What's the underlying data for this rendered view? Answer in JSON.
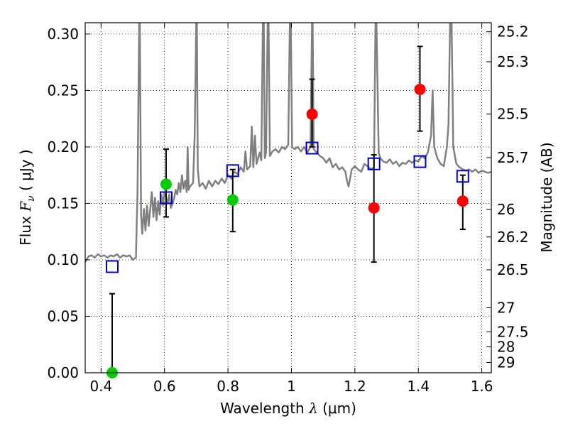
{
  "chart_data": {
    "type": "scatter",
    "xlabel": "Wavelength",
    "xlabel_symbol": "λ",
    "xlabel_unit": "(μm)",
    "ylabel": "Flux",
    "ylabel_symbol": "F",
    "ylabel_subscript": "ν",
    "ylabel_unit": "( μJy )",
    "y2label": "Magnitude (AB)",
    "xlim": [
      0.35,
      1.63
    ],
    "ylim": [
      0.0,
      0.31
    ],
    "grid": true,
    "x_ticks": [
      {
        "value": 0.4,
        "label": "0.4"
      },
      {
        "value": 0.6,
        "label": "0.6"
      },
      {
        "value": 0.8,
        "label": "0.8"
      },
      {
        "value": 1.0,
        "label": "1"
      },
      {
        "value": 1.2,
        "label": "1.2"
      },
      {
        "value": 1.4,
        "label": "1.4"
      },
      {
        "value": 1.6,
        "label": "1.6"
      }
    ],
    "y_ticks": [
      {
        "value": 0.0,
        "label": "0.00"
      },
      {
        "value": 0.05,
        "label": "0.05"
      },
      {
        "value": 0.1,
        "label": "0.10"
      },
      {
        "value": 0.15,
        "label": "0.15"
      },
      {
        "value": 0.2,
        "label": "0.20"
      },
      {
        "value": 0.25,
        "label": "0.25"
      },
      {
        "value": 0.3,
        "label": "0.30"
      }
    ],
    "y2_ticks": [
      {
        "value": 25.2,
        "label": "25.2"
      },
      {
        "value": 25.3,
        "label": "25.3"
      },
      {
        "value": 25.5,
        "label": "25.5"
      },
      {
        "value": 25.7,
        "label": "25.7"
      },
      {
        "value": 26.0,
        "label": "26"
      },
      {
        "value": 26.2,
        "label": "26.2"
      },
      {
        "value": 26.5,
        "label": "26.5"
      },
      {
        "value": 27.0,
        "label": "27"
      },
      {
        "value": 27.5,
        "label": "27.5"
      },
      {
        "value": 28.0,
        "label": "28"
      },
      {
        "value": 29.0,
        "label": "29"
      }
    ],
    "template_spectrum": {
      "color": "#808080",
      "points": [
        [
          0.35,
          0.098
        ],
        [
          0.36,
          0.103
        ],
        [
          0.37,
          0.104
        ],
        [
          0.38,
          0.102
        ],
        [
          0.39,
          0.105
        ],
        [
          0.4,
          0.103
        ],
        [
          0.41,
          0.104
        ],
        [
          0.42,
          0.102
        ],
        [
          0.43,
          0.104
        ],
        [
          0.44,
          0.103
        ],
        [
          0.45,
          0.105
        ],
        [
          0.46,
          0.102
        ],
        [
          0.47,
          0.104
        ],
        [
          0.48,
          0.103
        ],
        [
          0.49,
          0.104
        ],
        [
          0.5,
          0.1
        ],
        [
          0.51,
          0.102
        ],
        [
          0.512,
          0.128
        ],
        [
          0.515,
          0.16
        ],
        [
          0.52,
          0.31
        ],
        [
          0.522,
          0.31
        ],
        [
          0.526,
          0.14
        ],
        [
          0.53,
          0.123
        ],
        [
          0.535,
          0.145
        ],
        [
          0.54,
          0.126
        ],
        [
          0.545,
          0.148
        ],
        [
          0.55,
          0.13
        ],
        [
          0.56,
          0.16
        ],
        [
          0.565,
          0.138
        ],
        [
          0.57,
          0.155
        ],
        [
          0.575,
          0.135
        ],
        [
          0.58,
          0.152
        ],
        [
          0.585,
          0.14
        ],
        [
          0.59,
          0.158
        ],
        [
          0.595,
          0.148
        ],
        [
          0.6,
          0.16
        ],
        [
          0.61,
          0.15
        ],
        [
          0.615,
          0.158
        ],
        [
          0.62,
          0.146
        ],
        [
          0.63,
          0.154
        ],
        [
          0.635,
          0.162
        ],
        [
          0.64,
          0.158
        ],
        [
          0.645,
          0.168
        ],
        [
          0.65,
          0.16
        ],
        [
          0.655,
          0.175
        ],
        [
          0.66,
          0.163
        ],
        [
          0.665,
          0.17
        ],
        [
          0.67,
          0.16
        ],
        [
          0.673,
          0.2
        ],
        [
          0.676,
          0.162
        ],
        [
          0.68,
          0.165
        ],
        [
          0.69,
          0.168
        ],
        [
          0.695,
          0.21
        ],
        [
          0.7,
          0.31
        ],
        [
          0.702,
          0.31
        ],
        [
          0.705,
          0.18
        ],
        [
          0.71,
          0.165
        ],
        [
          0.72,
          0.168
        ],
        [
          0.73,
          0.163
        ],
        [
          0.74,
          0.17
        ],
        [
          0.75,
          0.165
        ],
        [
          0.76,
          0.17
        ],
        [
          0.77,
          0.167
        ],
        [
          0.78,
          0.172
        ],
        [
          0.79,
          0.168
        ],
        [
          0.8,
          0.175
        ],
        [
          0.81,
          0.172
        ],
        [
          0.82,
          0.178
        ],
        [
          0.83,
          0.176
        ],
        [
          0.84,
          0.182
        ],
        [
          0.85,
          0.178
        ],
        [
          0.855,
          0.196
        ],
        [
          0.86,
          0.18
        ],
        [
          0.87,
          0.183
        ],
        [
          0.875,
          0.218
        ],
        [
          0.88,
          0.182
        ],
        [
          0.885,
          0.21
        ],
        [
          0.89,
          0.185
        ],
        [
          0.9,
          0.195
        ],
        [
          0.905,
          0.188
        ],
        [
          0.91,
          0.31
        ],
        [
          0.913,
          0.31
        ],
        [
          0.916,
          0.19
        ],
        [
          0.92,
          0.195
        ],
        [
          0.925,
          0.31
        ],
        [
          0.928,
          0.31
        ],
        [
          0.932,
          0.192
        ],
        [
          0.94,
          0.196
        ],
        [
          0.95,
          0.198
        ],
        [
          0.96,
          0.195
        ],
        [
          0.97,
          0.2
        ],
        [
          0.98,
          0.198
        ],
        [
          0.99,
          0.202
        ],
        [
          0.995,
          0.31
        ],
        [
          0.998,
          0.31
        ],
        [
          1.002,
          0.2
        ],
        [
          1.01,
          0.198
        ],
        [
          1.02,
          0.2
        ],
        [
          1.03,
          0.196
        ],
        [
          1.04,
          0.2
        ],
        [
          1.05,
          0.195
        ],
        [
          1.06,
          0.2
        ],
        [
          1.065,
          0.31
        ],
        [
          1.067,
          0.31
        ],
        [
          1.07,
          0.198
        ],
        [
          1.08,
          0.195
        ],
        [
          1.09,
          0.192
        ],
        [
          1.1,
          0.19
        ],
        [
          1.11,
          0.186
        ],
        [
          1.12,
          0.19
        ],
        [
          1.13,
          0.182
        ],
        [
          1.14,
          0.185
        ],
        [
          1.15,
          0.18
        ],
        [
          1.16,
          0.182
        ],
        [
          1.17,
          0.178
        ],
        [
          1.175,
          0.17
        ],
        [
          1.18,
          0.165
        ],
        [
          1.185,
          0.172
        ],
        [
          1.19,
          0.18
        ],
        [
          1.2,
          0.183
        ],
        [
          1.21,
          0.18
        ],
        [
          1.22,
          0.178
        ],
        [
          1.23,
          0.185
        ],
        [
          1.24,
          0.183
        ],
        [
          1.25,
          0.18
        ],
        [
          1.26,
          0.182
        ],
        [
          1.265,
          0.31
        ],
        [
          1.268,
          0.31
        ],
        [
          1.275,
          0.195
        ],
        [
          1.28,
          0.19
        ],
        [
          1.29,
          0.187
        ],
        [
          1.3,
          0.186
        ],
        [
          1.31,
          0.189
        ],
        [
          1.32,
          0.185
        ],
        [
          1.33,
          0.187
        ],
        [
          1.34,
          0.183
        ],
        [
          1.35,
          0.186
        ],
        [
          1.36,
          0.185
        ],
        [
          1.37,
          0.188
        ],
        [
          1.38,
          0.186
        ],
        [
          1.39,
          0.188
        ],
        [
          1.4,
          0.187
        ],
        [
          1.41,
          0.192
        ],
        [
          1.42,
          0.19
        ],
        [
          1.43,
          0.195
        ],
        [
          1.44,
          0.21
        ],
        [
          1.445,
          0.25
        ],
        [
          1.45,
          0.2
        ],
        [
          1.46,
          0.19
        ],
        [
          1.47,
          0.185
        ],
        [
          1.48,
          0.183
        ],
        [
          1.49,
          0.2
        ],
        [
          1.495,
          0.22
        ],
        [
          1.5,
          0.31
        ],
        [
          1.505,
          0.31
        ],
        [
          1.51,
          0.2
        ],
        [
          1.52,
          0.185
        ],
        [
          1.53,
          0.182
        ],
        [
          1.54,
          0.18
        ],
        [
          1.55,
          0.179
        ],
        [
          1.56,
          0.18
        ],
        [
          1.57,
          0.178
        ],
        [
          1.58,
          0.18
        ],
        [
          1.59,
          0.177
        ],
        [
          1.6,
          0.179
        ],
        [
          1.61,
          0.178
        ],
        [
          1.62,
          0.177
        ],
        [
          1.63,
          0.178
        ]
      ]
    },
    "series": [
      {
        "marker": "square-open",
        "color": "#0000cc",
        "points": [
          {
            "x": 0.435,
            "y": 0.094
          },
          {
            "x": 0.605,
            "y": 0.155
          },
          {
            "x": 0.815,
            "y": 0.179
          },
          {
            "x": 1.065,
            "y": 0.199
          },
          {
            "x": 1.26,
            "y": 0.185
          },
          {
            "x": 1.405,
            "y": 0.187
          },
          {
            "x": 1.54,
            "y": 0.174
          }
        ]
      },
      {
        "marker": "circle-filled",
        "color": "#00cc00",
        "points": [
          {
            "x": 0.435,
            "y": 0.0,
            "yerr_low": 0.0,
            "yerr_high": 0.07
          },
          {
            "x": 0.605,
            "y": 0.167,
            "yerr_low": 0.138,
            "yerr_high": 0.198
          },
          {
            "x": 0.815,
            "y": 0.153,
            "yerr_low": 0.125,
            "yerr_high": 0.18
          }
        ]
      },
      {
        "marker": "circle-filled",
        "color": "#ff0000",
        "points": [
          {
            "x": 1.065,
            "y": 0.229,
            "yerr_low": 0.2,
            "yerr_high": 0.26
          },
          {
            "x": 1.26,
            "y": 0.146,
            "yerr_low": 0.098,
            "yerr_high": 0.193
          },
          {
            "x": 1.405,
            "y": 0.251,
            "yerr_low": 0.214,
            "yerr_high": 0.289
          },
          {
            "x": 1.54,
            "y": 0.152,
            "yerr_low": 0.127,
            "yerr_high": 0.175
          }
        ]
      }
    ]
  }
}
